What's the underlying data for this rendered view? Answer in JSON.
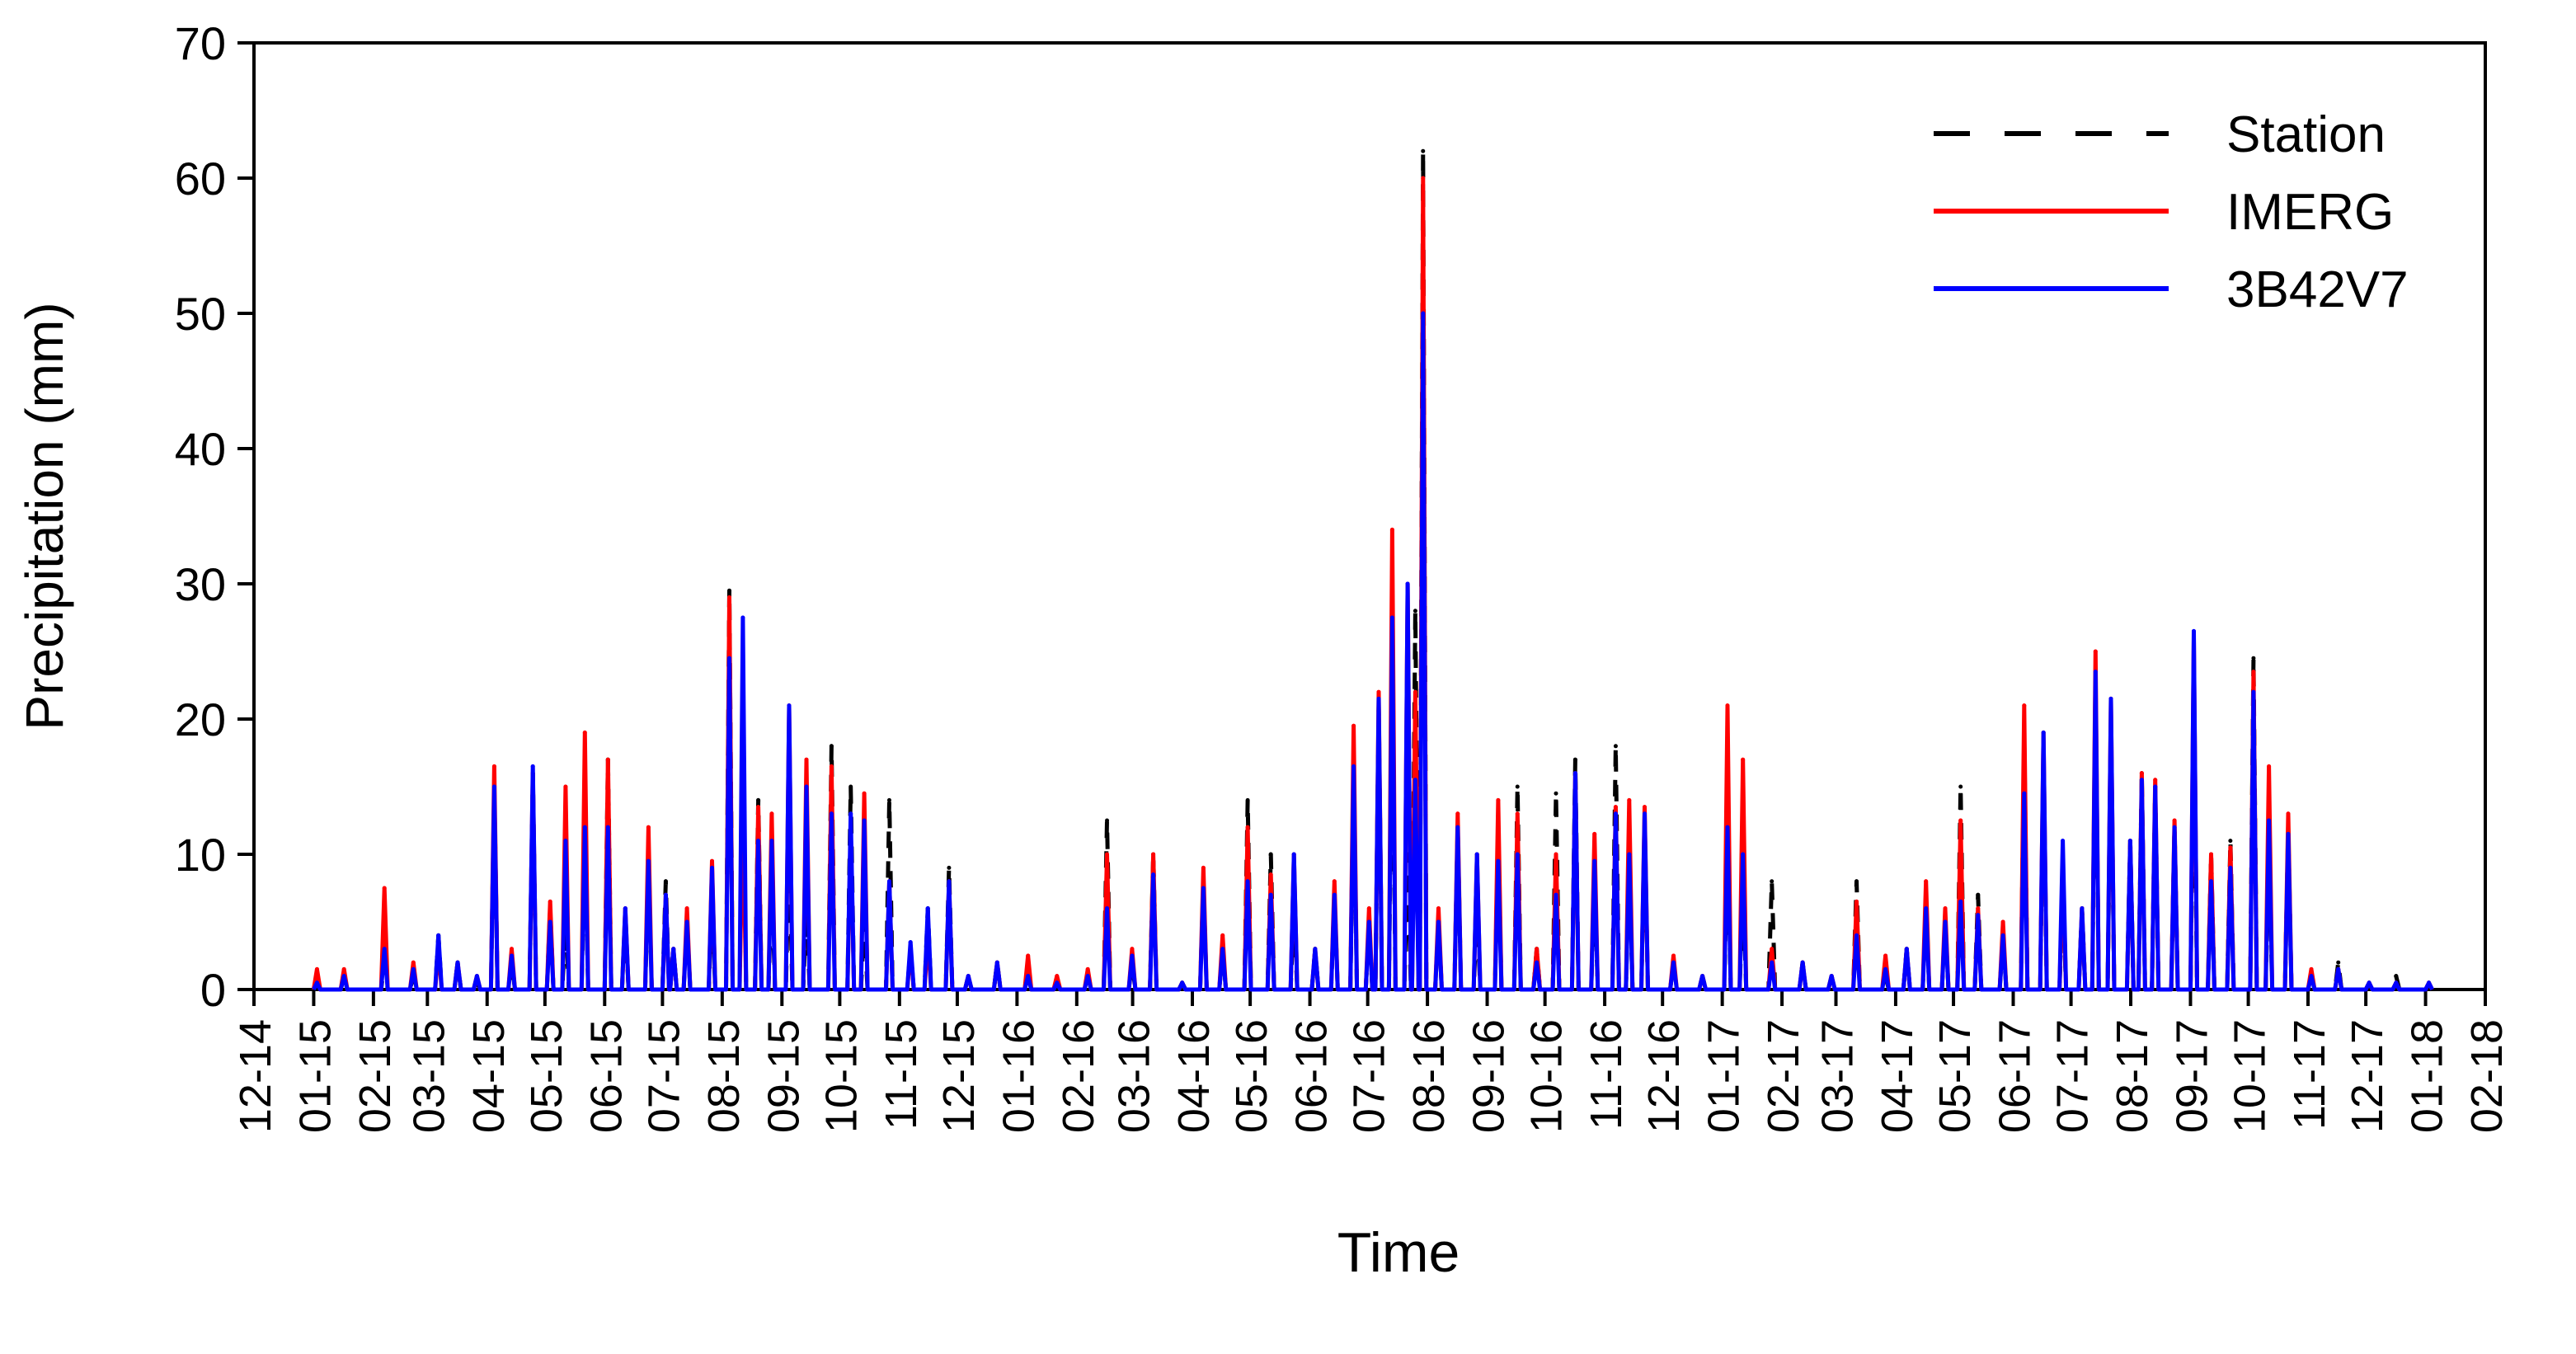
{
  "chart_data": {
    "type": "line",
    "title": "",
    "xlabel": "Time",
    "ylabel": "Precipitation (mm)",
    "ylim": [
      0,
      70
    ],
    "yticks": [
      0,
      10,
      20,
      30,
      40,
      50,
      60,
      70
    ],
    "xlim": [
      "2014-12-01",
      "2018-02-01"
    ],
    "xtick_labels": [
      "12-14",
      "01-15",
      "02-15",
      "03-15",
      "04-15",
      "05-15",
      "06-15",
      "07-15",
      "08-15",
      "09-15",
      "10-15",
      "11-15",
      "12-15",
      "01-16",
      "02-16",
      "03-16",
      "04-16",
      "05-16",
      "06-16",
      "07-16",
      "08-16",
      "09-16",
      "10-16",
      "11-16",
      "12-16",
      "01-17",
      "02-17",
      "03-17",
      "04-17",
      "05-17",
      "06-17",
      "07-17",
      "08-17",
      "09-17",
      "10-17",
      "11-17",
      "12-17",
      "01-18",
      "02-18"
    ],
    "grid": false,
    "legend_position": "top-right",
    "series": [
      {
        "name": "Station",
        "color": "#000000",
        "style": "dashed",
        "x": [
          "2015-01-01",
          "2015-01-15",
          "2015-02-05",
          "2015-02-20",
          "2015-03-05",
          "2015-03-15",
          "2015-03-25",
          "2015-04-03",
          "2015-04-12",
          "2015-04-23",
          "2015-05-02",
          "2015-05-10",
          "2015-05-20",
          "2015-06-01",
          "2015-06-10",
          "2015-06-22",
          "2015-07-01",
          "2015-07-05",
          "2015-07-12",
          "2015-07-25",
          "2015-08-03",
          "2015-08-10",
          "2015-08-18",
          "2015-08-25",
          "2015-09-03",
          "2015-09-12",
          "2015-09-25",
          "2015-10-05",
          "2015-10-12",
          "2015-10-25",
          "2015-11-05",
          "2015-11-14",
          "2015-11-25",
          "2015-12-05",
          "2015-12-20",
          "2016-01-05",
          "2016-01-20",
          "2016-02-05",
          "2016-02-15",
          "2016-02-28",
          "2016-03-10",
          "2016-03-25",
          "2016-04-05",
          "2016-04-15",
          "2016-04-28",
          "2016-05-10",
          "2016-05-22",
          "2016-06-02",
          "2016-06-12",
          "2016-06-22",
          "2016-06-30",
          "2016-07-05",
          "2016-07-12",
          "2016-07-20",
          "2016-07-24",
          "2016-07-28",
          "2016-08-05",
          "2016-08-15",
          "2016-08-25",
          "2016-09-05",
          "2016-09-15",
          "2016-09-25",
          "2016-10-05",
          "2016-10-15",
          "2016-10-25",
          "2016-11-05",
          "2016-11-12",
          "2016-11-20",
          "2016-12-05",
          "2016-12-20",
          "2017-01-02",
          "2017-01-10",
          "2017-01-25",
          "2017-02-10",
          "2017-02-25",
          "2017-03-10",
          "2017-03-25",
          "2017-04-05",
          "2017-04-15",
          "2017-04-25",
          "2017-05-03",
          "2017-05-12",
          "2017-05-25",
          "2017-06-05",
          "2017-06-15",
          "2017-06-25",
          "2017-07-05",
          "2017-07-12",
          "2017-07-20",
          "2017-07-30",
          "2017-08-05",
          "2017-08-12",
          "2017-08-22",
          "2017-09-01",
          "2017-09-10",
          "2017-09-20",
          "2017-10-02",
          "2017-10-10",
          "2017-10-20",
          "2017-11-01",
          "2017-11-15",
          "2017-12-01",
          "2017-12-15",
          "2018-01-01"
        ],
        "values": [
          0.5,
          1.0,
          2.0,
          1.0,
          4.0,
          2.0,
          0.5,
          15.0,
          2.0,
          16.0,
          6.0,
          5.0,
          11.0,
          17.0,
          5.0,
          9.0,
          8.0,
          3.0,
          5.0,
          6.0,
          29.5,
          16.0,
          14.0,
          8.0,
          10.0,
          6.0,
          18.0,
          15.0,
          5.0,
          14.0,
          3.0,
          6.0,
          9.0,
          1.0,
          2.0,
          1.0,
          0.5,
          1.0,
          12.5,
          2.0,
          10.0,
          0.5,
          8.0,
          3.0,
          14.0,
          10.0,
          6.0,
          3.0,
          7.0,
          16.0,
          5.0,
          21.0,
          23.5,
          10.0,
          28.0,
          62.0,
          5.0,
          12.0,
          6.0,
          12.0,
          15.0,
          3.0,
          14.5,
          17.0,
          8.0,
          18.0,
          10.0,
          12.0,
          2.0,
          1.0,
          11.0,
          7.5,
          8.0,
          2.0,
          1.0,
          8.0,
          1.0,
          3.0,
          6.0,
          5.0,
          15.0,
          7.0,
          4.0,
          19.0,
          17.0,
          7.0,
          6.0,
          22.0,
          20.0,
          11.0,
          16.0,
          15.0,
          12.0,
          20.0,
          10.0,
          11.0,
          24.5,
          10.0,
          12.0,
          1.0,
          2.0,
          0.5,
          1.0,
          0.5
        ]
      },
      {
        "name": "IMERG",
        "color": "#ff0000",
        "style": "solid",
        "x": [
          "2015-01-01",
          "2015-01-15",
          "2015-02-05",
          "2015-02-20",
          "2015-03-05",
          "2015-03-15",
          "2015-03-25",
          "2015-04-03",
          "2015-04-12",
          "2015-04-23",
          "2015-05-02",
          "2015-05-10",
          "2015-05-20",
          "2015-06-01",
          "2015-06-10",
          "2015-06-22",
          "2015-07-01",
          "2015-07-05",
          "2015-07-12",
          "2015-07-25",
          "2015-08-03",
          "2015-08-10",
          "2015-08-18",
          "2015-08-25",
          "2015-09-03",
          "2015-09-12",
          "2015-09-25",
          "2015-10-05",
          "2015-10-12",
          "2015-10-25",
          "2015-11-05",
          "2015-11-14",
          "2015-11-25",
          "2015-12-05",
          "2015-12-20",
          "2016-01-05",
          "2016-01-20",
          "2016-02-05",
          "2016-02-15",
          "2016-02-28",
          "2016-03-10",
          "2016-03-25",
          "2016-04-05",
          "2016-04-15",
          "2016-04-28",
          "2016-05-10",
          "2016-05-22",
          "2016-06-02",
          "2016-06-12",
          "2016-06-22",
          "2016-06-30",
          "2016-07-05",
          "2016-07-12",
          "2016-07-20",
          "2016-07-24",
          "2016-07-28",
          "2016-08-05",
          "2016-08-15",
          "2016-08-25",
          "2016-09-05",
          "2016-09-15",
          "2016-09-25",
          "2016-10-05",
          "2016-10-15",
          "2016-10-25",
          "2016-11-05",
          "2016-11-12",
          "2016-11-20",
          "2016-12-05",
          "2016-12-20",
          "2017-01-02",
          "2017-01-10",
          "2017-01-25",
          "2017-02-10",
          "2017-02-25",
          "2017-03-10",
          "2017-03-25",
          "2017-04-05",
          "2017-04-15",
          "2017-04-25",
          "2017-05-03",
          "2017-05-12",
          "2017-05-25",
          "2017-06-05",
          "2017-06-15",
          "2017-06-25",
          "2017-07-05",
          "2017-07-12",
          "2017-07-20",
          "2017-07-30",
          "2017-08-05",
          "2017-08-12",
          "2017-08-22",
          "2017-09-01",
          "2017-09-10",
          "2017-09-20",
          "2017-10-02",
          "2017-10-10",
          "2017-10-20",
          "2017-11-01",
          "2017-11-15",
          "2017-12-01",
          "2017-12-15",
          "2018-01-01"
        ],
        "values": [
          1.5,
          1.5,
          7.5,
          2.0,
          3.0,
          2.0,
          1.0,
          16.5,
          3.0,
          16.0,
          6.5,
          15.0,
          19.0,
          17.0,
          6.0,
          12.0,
          7.0,
          3.0,
          6.0,
          9.5,
          29.0,
          13.0,
          13.5,
          13.0,
          21.0,
          17.0,
          16.5,
          12.0,
          14.5,
          8.0,
          3.0,
          4.0,
          8.0,
          1.0,
          2.0,
          2.5,
          1.0,
          1.5,
          10.0,
          3.0,
          10.0,
          0.5,
          9.0,
          4.0,
          12.0,
          8.5,
          10.0,
          3.0,
          8.0,
          19.5,
          6.0,
          22.0,
          34.0,
          30.0,
          22.0,
          60.0,
          6.0,
          13.0,
          10.0,
          14.0,
          13.0,
          3.0,
          10.0,
          16.0,
          11.5,
          13.5,
          14.0,
          13.5,
          2.5,
          1.0,
          21.0,
          17.0,
          3.0,
          2.0,
          1.0,
          6.5,
          2.5,
          3.0,
          8.0,
          6.0,
          12.5,
          6.0,
          5.0,
          21.0,
          19.0,
          9.0,
          6.0,
          25.0,
          21.5,
          11.0,
          16.0,
          15.5,
          12.5,
          26.0,
          10.0,
          10.5,
          23.5,
          16.5,
          13.0,
          1.5,
          1.5,
          0.5,
          0.5,
          0.5
        ]
      },
      {
        "name": "3B42V7",
        "color": "#0000ff",
        "style": "solid",
        "x": [
          "2015-01-01",
          "2015-01-15",
          "2015-02-05",
          "2015-02-20",
          "2015-03-05",
          "2015-03-15",
          "2015-03-25",
          "2015-04-03",
          "2015-04-12",
          "2015-04-23",
          "2015-05-02",
          "2015-05-10",
          "2015-05-20",
          "2015-06-01",
          "2015-06-10",
          "2015-06-22",
          "2015-07-01",
          "2015-07-05",
          "2015-07-12",
          "2015-07-25",
          "2015-08-03",
          "2015-08-10",
          "2015-08-18",
          "2015-08-25",
          "2015-09-03",
          "2015-09-12",
          "2015-09-25",
          "2015-10-05",
          "2015-10-12",
          "2015-10-25",
          "2015-11-05",
          "2015-11-14",
          "2015-11-25",
          "2015-12-05",
          "2015-12-20",
          "2016-01-05",
          "2016-01-20",
          "2016-02-05",
          "2016-02-15",
          "2016-02-28",
          "2016-03-10",
          "2016-03-25",
          "2016-04-05",
          "2016-04-15",
          "2016-04-28",
          "2016-05-10",
          "2016-05-22",
          "2016-06-02",
          "2016-06-12",
          "2016-06-22",
          "2016-06-30",
          "2016-07-05",
          "2016-07-12",
          "2016-07-20",
          "2016-07-24",
          "2016-07-28",
          "2016-08-05",
          "2016-08-15",
          "2016-08-25",
          "2016-09-05",
          "2016-09-15",
          "2016-09-25",
          "2016-10-05",
          "2016-10-15",
          "2016-10-25",
          "2016-11-05",
          "2016-11-12",
          "2016-11-20",
          "2016-12-05",
          "2016-12-20",
          "2017-01-02",
          "2017-01-10",
          "2017-01-25",
          "2017-02-10",
          "2017-02-25",
          "2017-03-10",
          "2017-03-25",
          "2017-04-05",
          "2017-04-15",
          "2017-04-25",
          "2017-05-03",
          "2017-05-12",
          "2017-05-25",
          "2017-06-05",
          "2017-06-15",
          "2017-06-25",
          "2017-07-05",
          "2017-07-12",
          "2017-07-20",
          "2017-07-30",
          "2017-08-05",
          "2017-08-12",
          "2017-08-22",
          "2017-09-01",
          "2017-09-10",
          "2017-09-20",
          "2017-10-02",
          "2017-10-10",
          "2017-10-20",
          "2017-11-01",
          "2017-11-15",
          "2017-12-01",
          "2017-12-15",
          "2018-01-01"
        ],
        "values": [
          0.5,
          1.0,
          3.0,
          1.5,
          4.0,
          2.0,
          1.0,
          15.0,
          2.5,
          16.5,
          5.0,
          11.0,
          12.0,
          12.0,
          6.0,
          9.5,
          7.0,
          3.0,
          5.0,
          9.0,
          24.5,
          27.5,
          11.0,
          11.0,
          21.0,
          15.0,
          13.0,
          13.0,
          12.5,
          8.0,
          3.5,
          6.0,
          8.0,
          1.0,
          2.0,
          1.0,
          0.5,
          1.0,
          6.0,
          2.5,
          8.5,
          0.5,
          7.5,
          3.0,
          8.0,
          7.0,
          10.0,
          3.0,
          7.0,
          16.5,
          5.0,
          21.5,
          27.5,
          30.0,
          15.5,
          50.0,
          5.0,
          12.0,
          10.0,
          9.5,
          10.0,
          2.0,
          7.0,
          16.0,
          9.5,
          13.0,
          10.0,
          13.0,
          2.0,
          1.0,
          12.0,
          10.0,
          2.0,
          2.0,
          1.0,
          4.0,
          1.5,
          3.0,
          6.0,
          5.0,
          6.5,
          5.5,
          4.0,
          14.5,
          19.0,
          11.0,
          6.0,
          23.5,
          21.5,
          11.0,
          15.5,
          15.0,
          12.0,
          26.5,
          8.0,
          9.0,
          22.0,
          12.5,
          11.5,
          1.0,
          1.5,
          0.5,
          0.5,
          0.5
        ]
      }
    ]
  }
}
